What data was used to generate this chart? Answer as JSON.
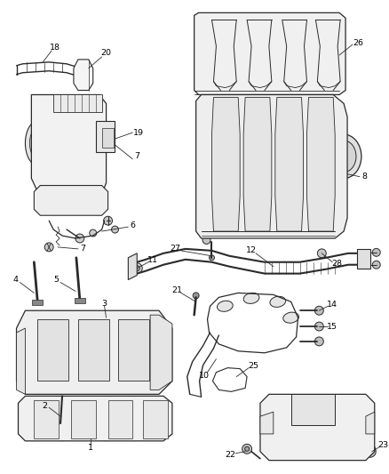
{
  "bg_color": "#ffffff",
  "line_color": "#2a2a2a",
  "text_color": "#000000",
  "fig_width": 4.38,
  "fig_height": 5.33,
  "dpi": 100
}
